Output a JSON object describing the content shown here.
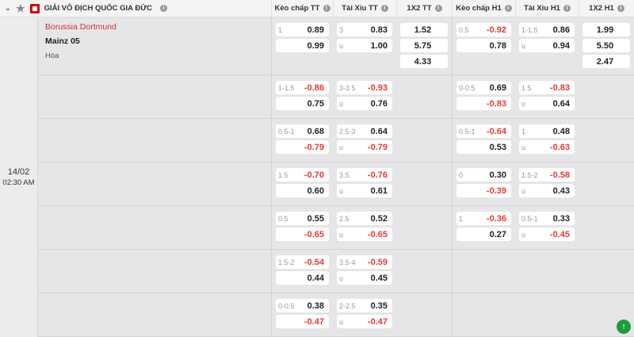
{
  "header": {
    "league": "GIẢI VÔ ĐỊCH QUỐC GIA ĐỨC",
    "columns": [
      "Kèo chấp TT",
      "Tài Xỉu TT",
      "1X2 TT",
      "Kèo chấp H1",
      "Tài Xỉu H1",
      "1X2 H1"
    ]
  },
  "match": {
    "date": "14/02",
    "time": "02:30 AM",
    "home": "Borussia Dortmund",
    "away": "Mainz 05",
    "draw": "Hòa"
  },
  "colors": {
    "negative": "#e53935",
    "home": "#d32f2f",
    "scroll_button": "#1e9b3c"
  },
  "rows": [
    {
      "hdp_ft": [
        [
          "1",
          "0.89"
        ],
        [
          "",
          "0.99"
        ]
      ],
      "ou_ft": [
        [
          "3",
          "0.83"
        ],
        [
          "u",
          "1.00"
        ]
      ],
      "x12_ft": [
        "1.52",
        "5.75",
        "4.33"
      ],
      "hdp_h1": [
        [
          "0.5",
          "-0.92"
        ],
        [
          "",
          "0.78"
        ]
      ],
      "ou_h1": [
        [
          "1-1.5",
          "0.86"
        ],
        [
          "u",
          "0.94"
        ]
      ],
      "x12_h1": [
        "1.99",
        "5.50",
        "2.47"
      ]
    },
    {
      "hdp_ft": [
        [
          "1-1.5",
          "-0.86"
        ],
        [
          "",
          "0.75"
        ]
      ],
      "ou_ft": [
        [
          "3-3.5",
          "-0.93"
        ],
        [
          "u",
          "0.76"
        ]
      ],
      "hdp_h1": [
        [
          "0-0.5",
          "0.69"
        ],
        [
          "",
          "-0.83"
        ]
      ],
      "ou_h1": [
        [
          "1.5",
          "-0.83"
        ],
        [
          "u",
          "0.64"
        ]
      ]
    },
    {
      "hdp_ft": [
        [
          "0.5-1",
          "0.68"
        ],
        [
          "",
          "-0.79"
        ]
      ],
      "ou_ft": [
        [
          "2.5-3",
          "0.64"
        ],
        [
          "u",
          "-0.79"
        ]
      ],
      "hdp_h1": [
        [
          "0.5-1",
          "-0.64"
        ],
        [
          "",
          "0.53"
        ]
      ],
      "ou_h1": [
        [
          "1",
          "0.48"
        ],
        [
          "u",
          "-0.63"
        ]
      ]
    },
    {
      "hdp_ft": [
        [
          "1.5",
          "-0.70"
        ],
        [
          "",
          "0.60"
        ]
      ],
      "ou_ft": [
        [
          "3.5",
          "-0.76"
        ],
        [
          "u",
          "0.61"
        ]
      ],
      "hdp_h1": [
        [
          "0",
          "0.30"
        ],
        [
          "",
          "-0.39"
        ]
      ],
      "ou_h1": [
        [
          "1.5-2",
          "-0.58"
        ],
        [
          "u",
          "0.43"
        ]
      ]
    },
    {
      "hdp_ft": [
        [
          "0.5",
          "0.55"
        ],
        [
          "",
          "-0.65"
        ]
      ],
      "ou_ft": [
        [
          "2.5",
          "0.52"
        ],
        [
          "u",
          "-0.65"
        ]
      ],
      "hdp_h1": [
        [
          "1",
          "-0.36"
        ],
        [
          "",
          "0.27"
        ]
      ],
      "ou_h1": [
        [
          "0.5-1",
          "0.33"
        ],
        [
          "u",
          "-0.45"
        ]
      ]
    },
    {
      "hdp_ft": [
        [
          "1.5-2",
          "-0.54"
        ],
        [
          "",
          "0.44"
        ]
      ],
      "ou_ft": [
        [
          "3.5-4",
          "-0.59"
        ],
        [
          "u",
          "0.45"
        ]
      ]
    },
    {
      "hdp_ft": [
        [
          "0-0.5",
          "0.38"
        ],
        [
          "",
          "-0.47"
        ]
      ],
      "ou_ft": [
        [
          "2-2.5",
          "0.35"
        ],
        [
          "u",
          "-0.47"
        ]
      ]
    }
  ]
}
